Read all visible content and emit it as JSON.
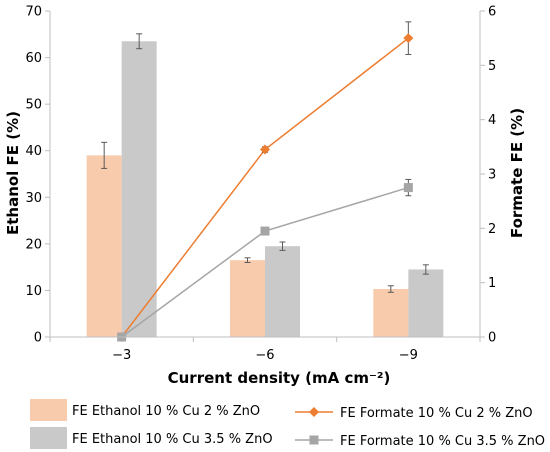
{
  "chart_data": {
    "type": "bar",
    "categories": [
      "−3",
      "−6",
      "−9"
    ],
    "xlabel": "Current density (mA cm⁻²)",
    "ylabel": "Ethanol FE (%)",
    "y2label": "Formate FE (%)",
    "ylim": [
      0,
      70
    ],
    "y2lim": [
      0,
      6
    ],
    "yticks": [
      "0",
      "10",
      "20",
      "30",
      "40",
      "50",
      "60",
      "70"
    ],
    "y2ticks": [
      "0",
      "1",
      "2",
      "3",
      "4",
      "5",
      "6"
    ],
    "grid": false,
    "legend_position": "bottom",
    "bar_series": [
      {
        "name": "FE Ethanol 10 % Cu 2 % ZnO",
        "values": [
          39.0,
          16.5,
          10.3
        ],
        "errors": [
          2.8,
          0.5,
          0.7
        ],
        "color": "#f8cbad"
      },
      {
        "name": "FE Ethanol 10 % Cu 3.5 % ZnO",
        "values": [
          63.5,
          19.5,
          14.5
        ],
        "errors": [
          1.6,
          0.9,
          1.0
        ],
        "color": "#c9c9c9"
      }
    ],
    "line_series": [
      {
        "name": "FE Formate 10 % Cu 2 % ZnO",
        "values": [
          0.0,
          3.45,
          5.5
        ],
        "errors": [
          0,
          0.05,
          0.3
        ],
        "color": "#ed7d31",
        "marker": "diamond"
      },
      {
        "name": "FE Formate 10 % Cu 3.5 % ZnO",
        "values": [
          0.0,
          1.95,
          2.75
        ],
        "errors": [
          0,
          0,
          0.15
        ],
        "color": "#a5a5a5",
        "marker": "square"
      }
    ]
  }
}
